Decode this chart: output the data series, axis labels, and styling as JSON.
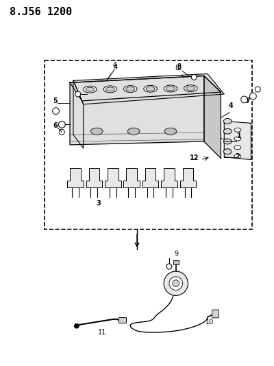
{
  "title": "8.J56 1200",
  "bg_color": "#ffffff",
  "title_fontsize": 11,
  "title_font": "bold",
  "fig_width": 4.0,
  "fig_height": 5.33,
  "dpi": 100
}
